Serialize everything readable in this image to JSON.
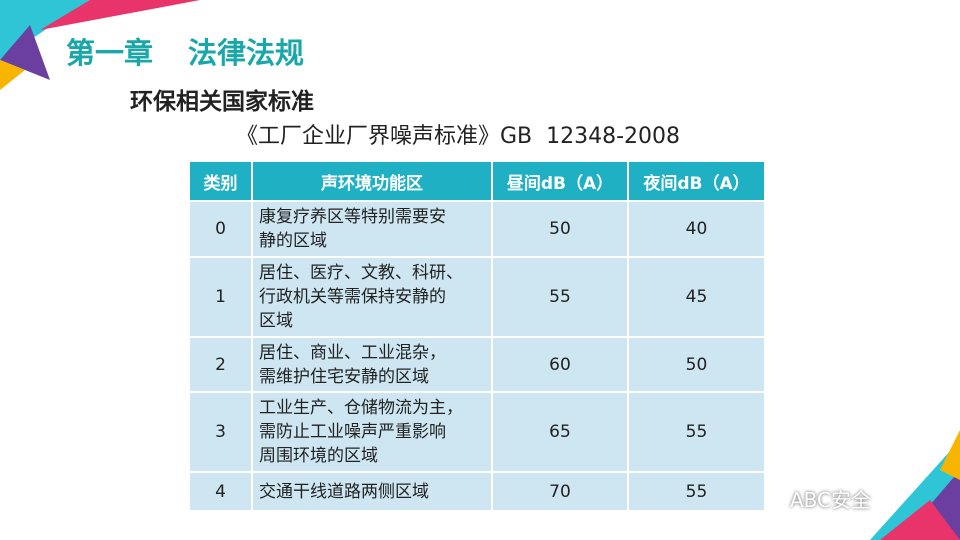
{
  "header": {
    "chapter": "第一章",
    "title": "法律法规",
    "subtitle": "环保相关国家标准",
    "caption": "《工厂企业厂界噪声标准》GB  12348-2008"
  },
  "table": {
    "columns": [
      "类别",
      "声环境功能区",
      "昼间dB（A）",
      "夜间dB（A）"
    ],
    "rows": [
      [
        0,
        [
          "康复疗养区等特别需要安",
          "静的区域"
        ],
        50,
        40
      ],
      [
        1,
        [
          "居住、医疗、文教、科研、",
          "行政机关等需保持安静的",
          "区域"
        ],
        55,
        45
      ],
      [
        2,
        [
          "居住、商业、工业混杂，",
          "需维护住宅安静的区域"
        ],
        60,
        50
      ],
      [
        3,
        [
          "工业生产、仓储物流为主，",
          "需防止工业噪声严重影响",
          "周围环境的区域"
        ],
        65,
        55
      ],
      [
        4,
        [
          "交通干线道路两侧区域"
        ],
        70,
        55
      ]
    ]
  },
  "watermark": "ABC安全"
}
